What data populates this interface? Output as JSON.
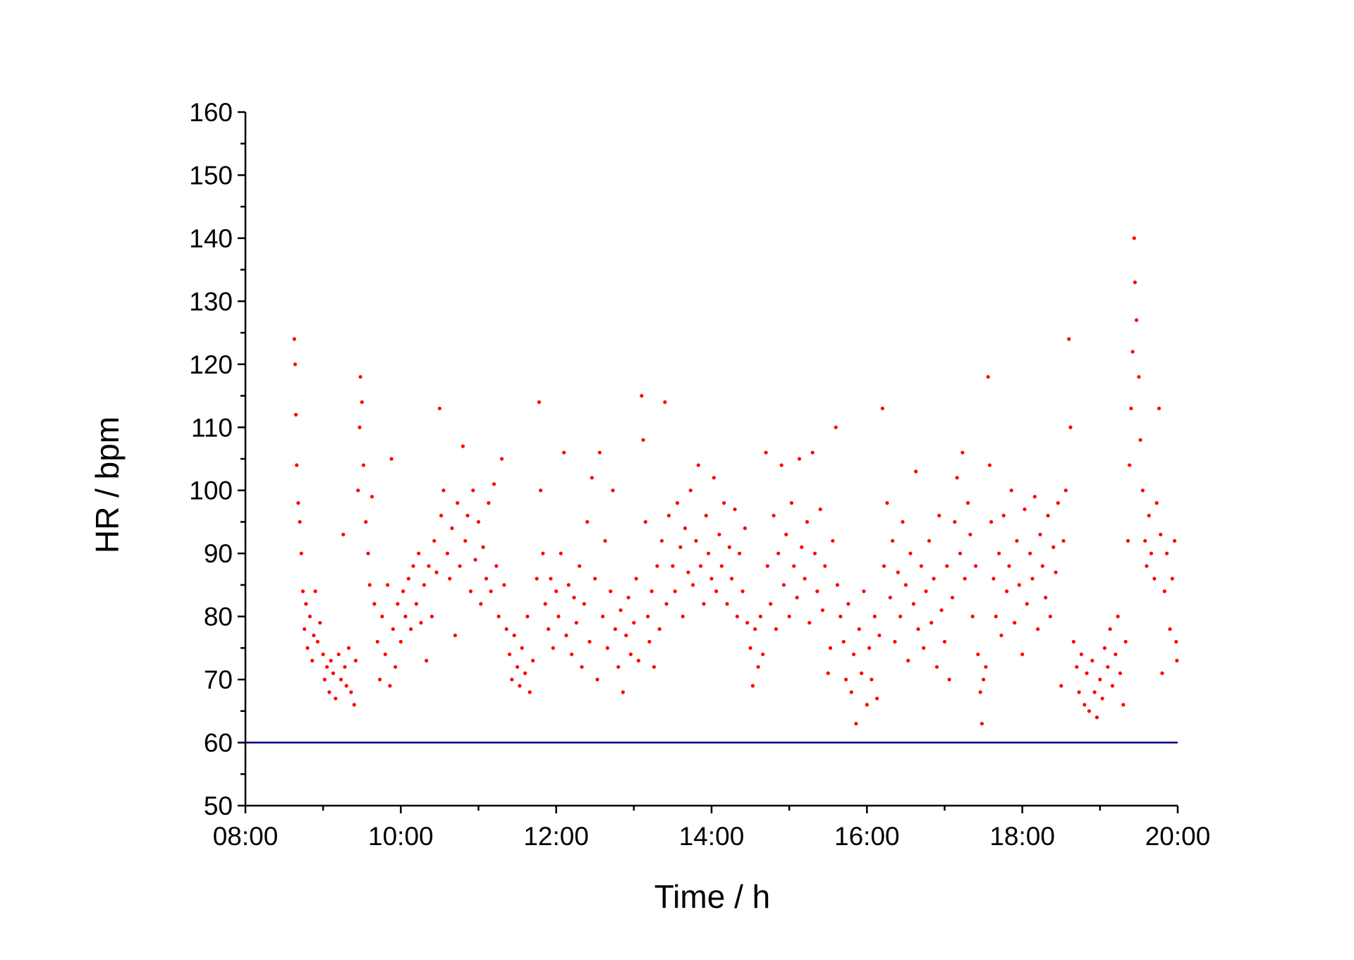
{
  "chart_data": {
    "type": "scatter",
    "xlabel": "Time / h",
    "ylabel": "HR / bpm",
    "xlim": [
      8,
      20
    ],
    "ylim": [
      50,
      160
    ],
    "xticks": [
      {
        "value": 8,
        "label": "08:00"
      },
      {
        "value": 10,
        "label": "10:00"
      },
      {
        "value": 12,
        "label": "12:00"
      },
      {
        "value": 14,
        "label": "14:00"
      },
      {
        "value": 16,
        "label": "16:00"
      },
      {
        "value": 18,
        "label": "18:00"
      },
      {
        "value": 20,
        "label": "20:00"
      }
    ],
    "xminorticks": [
      9,
      11,
      13,
      15,
      17,
      19
    ],
    "yticks": [
      50,
      60,
      70,
      80,
      90,
      100,
      110,
      120,
      130,
      140,
      150,
      160
    ],
    "yminorticks": [
      55,
      65,
      75,
      85,
      95,
      105,
      115,
      125,
      135,
      145,
      155
    ],
    "hline": {
      "value": 60,
      "color": "#000080"
    },
    "color": "#ff0000",
    "x": [
      8.63,
      8.64,
      8.65,
      8.66,
      8.68,
      8.7,
      8.72,
      8.74,
      8.76,
      8.78,
      8.8,
      8.83,
      8.86,
      8.88,
      8.9,
      8.93,
      8.96,
      9.0,
      9.02,
      9.05,
      9.08,
      9.1,
      9.13,
      9.16,
      9.2,
      9.23,
      9.26,
      9.28,
      9.3,
      9.33,
      9.36,
      9.4,
      9.42,
      9.45,
      9.47,
      9.48,
      9.5,
      9.52,
      9.55,
      9.58,
      9.6,
      9.63,
      9.66,
      9.7,
      9.73,
      9.76,
      9.8,
      9.83,
      9.86,
      9.88,
      9.9,
      9.93,
      9.96,
      10.0,
      10.03,
      10.06,
      10.1,
      10.13,
      10.16,
      10.2,
      10.23,
      10.26,
      10.3,
      10.33,
      10.36,
      10.4,
      10.43,
      10.46,
      10.5,
      10.52,
      10.55,
      10.6,
      10.63,
      10.66,
      10.7,
      10.73,
      10.76,
      10.8,
      10.83,
      10.86,
      10.9,
      10.93,
      10.96,
      11.0,
      11.03,
      11.06,
      11.1,
      11.13,
      11.16,
      11.2,
      11.23,
      11.26,
      11.3,
      11.33,
      11.36,
      11.4,
      11.43,
      11.46,
      11.5,
      11.53,
      11.56,
      11.6,
      11.63,
      11.66,
      11.7,
      11.75,
      11.78,
      11.8,
      11.83,
      11.86,
      11.9,
      11.93,
      11.96,
      12.0,
      12.03,
      12.06,
      12.1,
      12.13,
      12.16,
      12.2,
      12.23,
      12.26,
      12.3,
      12.33,
      12.36,
      12.4,
      12.43,
      12.46,
      12.5,
      12.53,
      12.56,
      12.6,
      12.63,
      12.66,
      12.7,
      12.73,
      12.76,
      12.8,
      12.83,
      12.86,
      12.9,
      12.93,
      12.96,
      13.0,
      13.03,
      13.06,
      13.1,
      13.12,
      13.15,
      13.18,
      13.2,
      13.23,
      13.26,
      13.3,
      13.33,
      13.36,
      13.4,
      13.42,
      13.45,
      13.5,
      13.53,
      13.56,
      13.6,
      13.63,
      13.66,
      13.7,
      13.73,
      13.76,
      13.8,
      13.83,
      13.86,
      13.9,
      13.93,
      13.96,
      14.0,
      14.03,
      14.06,
      14.1,
      14.13,
      14.16,
      14.2,
      14.23,
      14.26,
      14.3,
      14.33,
      14.36,
      14.4,
      14.43,
      14.46,
      14.5,
      14.53,
      14.56,
      14.6,
      14.63,
      14.66,
      14.7,
      14.72,
      14.76,
      14.8,
      14.83,
      14.86,
      14.9,
      14.93,
      14.96,
      15.0,
      15.03,
      15.06,
      15.1,
      15.13,
      15.16,
      15.2,
      15.23,
      15.26,
      15.3,
      15.33,
      15.36,
      15.4,
      15.43,
      15.46,
      15.5,
      15.53,
      15.56,
      15.6,
      15.62,
      15.66,
      15.7,
      15.73,
      15.76,
      15.8,
      15.83,
      15.86,
      15.9,
      15.93,
      15.96,
      16.0,
      16.03,
      16.06,
      16.1,
      16.13,
      16.16,
      16.2,
      16.22,
      16.26,
      16.3,
      16.33,
      16.36,
      16.4,
      16.43,
      16.46,
      16.5,
      16.53,
      16.56,
      16.6,
      16.63,
      16.66,
      16.7,
      16.73,
      16.76,
      16.8,
      16.83,
      16.86,
      16.9,
      16.93,
      16.96,
      17.0,
      17.03,
      17.06,
      17.1,
      17.13,
      17.16,
      17.2,
      17.23,
      17.26,
      17.3,
      17.33,
      17.36,
      17.4,
      17.43,
      17.46,
      17.48,
      17.5,
      17.53,
      17.56,
      17.58,
      17.6,
      17.63,
      17.66,
      17.7,
      17.73,
      17.76,
      17.8,
      17.83,
      17.86,
      17.9,
      17.93,
      17.96,
      18.0,
      18.03,
      18.06,
      18.1,
      18.13,
      18.16,
      18.2,
      18.23,
      18.26,
      18.3,
      18.33,
      18.36,
      18.4,
      18.43,
      18.46,
      18.5,
      18.53,
      18.56,
      18.6,
      18.62,
      18.66,
      18.7,
      18.73,
      18.76,
      18.8,
      18.83,
      18.86,
      18.9,
      18.93,
      18.96,
      19.0,
      19.03,
      19.06,
      19.1,
      19.13,
      19.16,
      19.2,
      19.23,
      19.26,
      19.3,
      19.33,
      19.36,
      19.38,
      19.4,
      19.42,
      19.44,
      19.45,
      19.47,
      19.5,
      19.52,
      19.55,
      19.58,
      19.6,
      19.63,
      19.66,
      19.7,
      19.73,
      19.76,
      19.78,
      19.8,
      19.83,
      19.86,
      19.9,
      19.93,
      19.96,
      19.98,
      19.99
    ],
    "values": [
      124,
      120,
      112,
      104,
      98,
      95,
      90,
      84,
      78,
      82,
      75,
      80,
      73,
      77,
      84,
      76,
      79,
      74,
      70,
      72,
      68,
      73,
      71,
      67,
      74,
      70,
      93,
      72,
      69,
      75,
      68,
      66,
      73,
      100,
      110,
      118,
      114,
      104,
      95,
      90,
      85,
      99,
      82,
      76,
      70,
      80,
      74,
      85,
      69,
      105,
      78,
      72,
      82,
      76,
      84,
      80,
      86,
      78,
      88,
      82,
      90,
      79,
      85,
      73,
      88,
      80,
      92,
      87,
      113,
      96,
      100,
      90,
      86,
      94,
      77,
      98,
      88,
      107,
      92,
      96,
      84,
      100,
      89,
      95,
      82,
      91,
      86,
      98,
      84,
      101,
      88,
      80,
      105,
      85,
      78,
      74,
      70,
      77,
      72,
      69,
      75,
      71,
      80,
      68,
      73,
      86,
      114,
      100,
      90,
      82,
      78,
      86,
      75,
      84,
      80,
      90,
      106,
      77,
      85,
      74,
      83,
      79,
      88,
      72,
      82,
      95,
      76,
      102,
      86,
      70,
      106,
      80,
      92,
      75,
      84,
      100,
      78,
      72,
      81,
      68,
      77,
      83,
      74,
      79,
      86,
      73,
      115,
      108,
      95,
      80,
      76,
      84,
      72,
      88,
      78,
      92,
      114,
      82,
      96,
      88,
      84,
      98,
      91,
      80,
      94,
      87,
      100,
      85,
      92,
      104,
      88,
      82,
      96,
      90,
      86,
      102,
      84,
      93,
      88,
      98,
      82,
      91,
      86,
      97,
      80,
      90,
      84,
      94,
      79,
      75,
      69,
      78,
      72,
      80,
      74,
      106,
      88,
      82,
      96,
      78,
      90,
      104,
      85,
      93,
      80,
      98,
      88,
      83,
      105,
      91,
      86,
      95,
      79,
      106,
      90,
      84,
      97,
      81,
      88,
      71,
      75,
      92,
      110,
      85,
      80,
      76,
      70,
      82,
      68,
      74,
      63,
      78,
      71,
      84,
      66,
      75,
      70,
      80,
      67,
      77,
      113,
      88,
      98,
      83,
      92,
      76,
      87,
      80,
      95,
      85,
      73,
      90,
      82,
      103,
      78,
      88,
      75,
      84,
      92,
      79,
      86,
      72,
      96,
      81,
      76,
      88,
      70,
      83,
      95,
      102,
      90,
      106,
      86,
      98,
      93,
      80,
      88,
      74,
      68,
      63,
      70,
      72,
      118,
      104,
      95,
      86,
      80,
      90,
      77,
      96,
      84,
      88,
      100,
      79,
      92,
      85,
      74,
      97,
      82,
      90,
      86,
      99,
      78,
      93,
      88,
      83,
      96,
      80,
      91,
      87,
      98,
      69,
      92,
      100,
      124,
      110,
      76,
      72,
      68,
      74,
      66,
      71,
      65,
      73,
      68,
      64,
      70,
      67,
      75,
      72,
      78,
      69,
      74,
      80,
      71,
      66,
      76,
      92,
      104,
      113,
      122,
      140,
      133,
      127,
      118,
      108,
      100,
      92,
      88,
      96,
      90,
      86,
      98,
      113,
      93,
      71,
      84,
      90,
      78,
      86,
      92,
      76,
      73
    ]
  }
}
